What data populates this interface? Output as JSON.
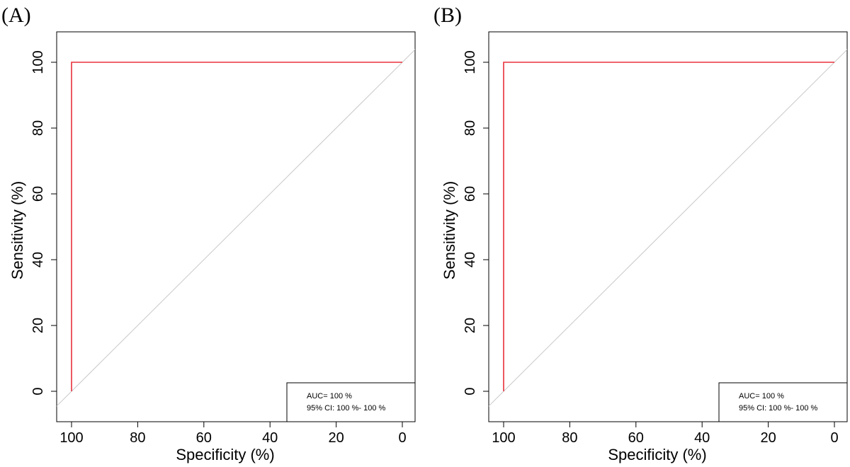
{
  "chart_data": [
    {
      "panel_label": "(A)",
      "type": "line",
      "xlabel": "Specificity (%)",
      "ylabel": "Sensitivity (%)",
      "xlim": [
        100,
        0
      ],
      "ylim": [
        0,
        100
      ],
      "x_ticks": [
        100,
        80,
        60,
        40,
        20,
        0
      ],
      "y_ticks": [
        0,
        20,
        40,
        60,
        80,
        100
      ],
      "reference_line": true,
      "grid": false,
      "series": [
        {
          "color": "#e8303a",
          "x": [
            100,
            100,
            0
          ],
          "y": [
            0,
            100,
            100
          ]
        }
      ],
      "legend": {
        "position": "bottom-right",
        "lines": [
          "AUC= 100 %",
          "95% CI: 100 %- 100 %"
        ]
      }
    },
    {
      "panel_label": "(B)",
      "type": "line",
      "xlabel": "Specificity (%)",
      "ylabel": "Sensitivity (%)",
      "xlim": [
        100,
        0
      ],
      "ylim": [
        0,
        100
      ],
      "x_ticks": [
        100,
        80,
        60,
        40,
        20,
        0
      ],
      "y_ticks": [
        0,
        20,
        40,
        60,
        80,
        100
      ],
      "reference_line": true,
      "grid": false,
      "series": [
        {
          "color": "#e8303a",
          "x": [
            100,
            100,
            0
          ],
          "y": [
            0,
            100,
            100
          ]
        }
      ],
      "legend": {
        "position": "bottom-right",
        "lines": [
          "AUC= 100 %",
          "95% CI: 100 %- 100 %"
        ]
      }
    }
  ]
}
